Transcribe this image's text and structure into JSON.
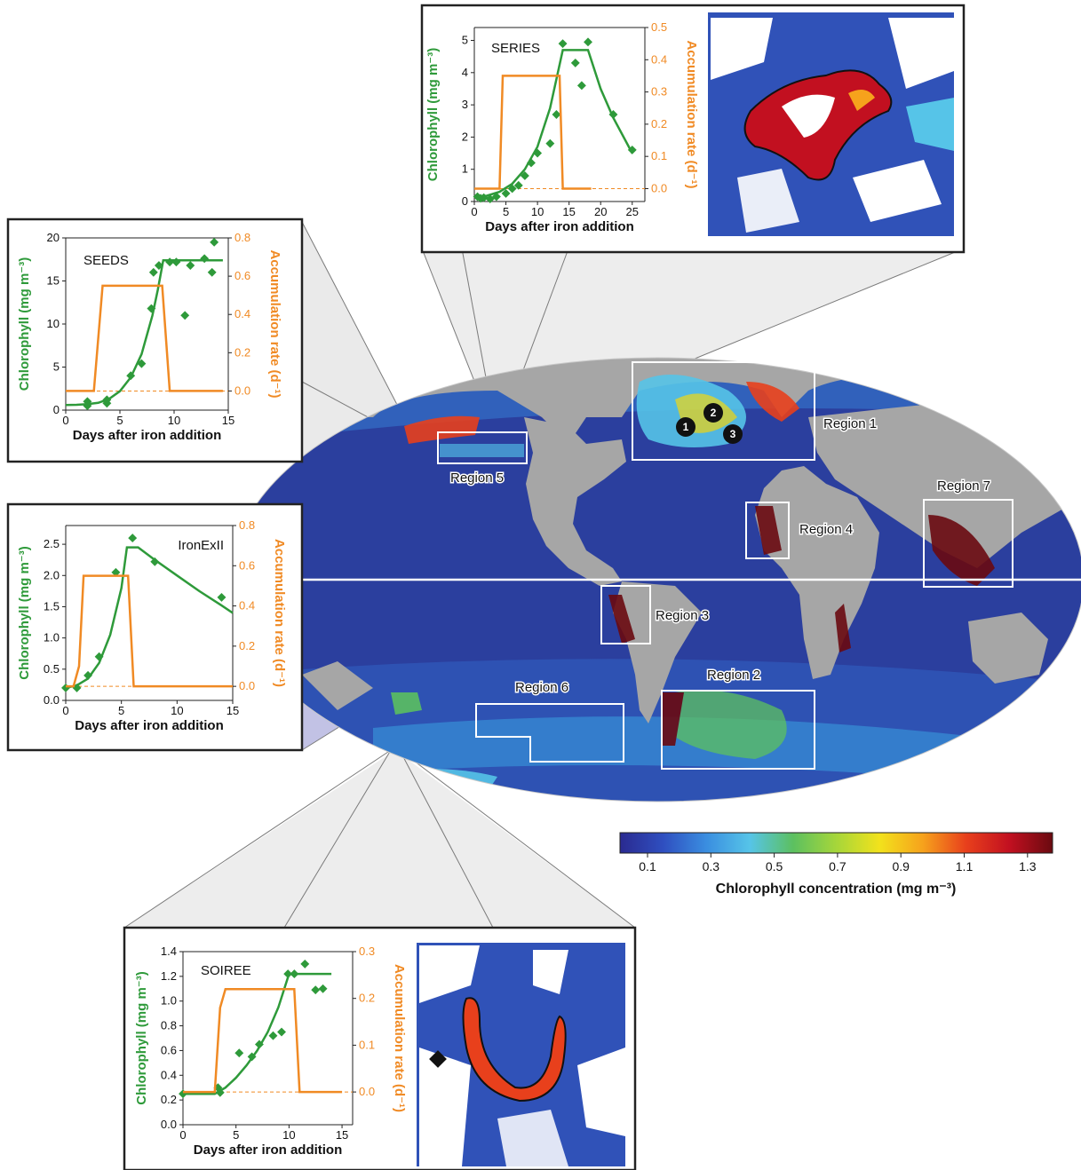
{
  "colors": {
    "chl_green": "#2e9a3a",
    "rate_orange": "#f08a24",
    "ocean_low": "#2b3f9e",
    "land": "#a6a6a6",
    "region_box": "#ffffff"
  },
  "map": {
    "regions": [
      {
        "id": "1",
        "label": "Region 1"
      },
      {
        "id": "2",
        "label": "Region 2"
      },
      {
        "id": "3",
        "label": "Region 3"
      },
      {
        "id": "4",
        "label": "Region 4"
      },
      {
        "id": "5",
        "label": "Region 5"
      },
      {
        "id": "6",
        "label": "Region 6"
      },
      {
        "id": "7",
        "label": "Region 7"
      }
    ],
    "markers": [
      "1",
      "2",
      "3"
    ]
  },
  "colorbar": {
    "ticks": [
      "0.1",
      "0.3",
      "0.5",
      "0.7",
      "0.9",
      "1.1",
      "1.3"
    ],
    "title": "Chlorophyll concentration (mg m⁻³)",
    "colors": [
      "#2a2a90",
      "#2f4fc0",
      "#3a8ee0",
      "#56c4e8",
      "#5cc060",
      "#a6d63a",
      "#f2e21c",
      "#f6a21c",
      "#e8401c",
      "#c21020",
      "#6a0a10"
    ]
  },
  "chart_data": [
    {
      "type": "line",
      "title": "SEEDS",
      "xlabel": "Days after iron addition",
      "ylabel_left": "Chlorophyll (mg m⁻³)",
      "ylabel_right": "Accumulation rate (d⁻¹)",
      "xlim": [
        0,
        15
      ],
      "ylim_left": [
        0,
        20
      ],
      "ylim_right": [
        -0.1,
        0.8
      ],
      "xticks": [
        "0",
        "5",
        "10",
        "15"
      ],
      "yticks_left": [
        "0",
        "5",
        "10",
        "15",
        "20"
      ],
      "yticks_right": [
        "0.0",
        "0.2",
        "0.4",
        "0.6",
        "0.8"
      ],
      "series": [
        {
          "axis": "left",
          "kind": "points",
          "x": [
            2,
            2,
            3.8,
            3.8,
            6,
            7,
            7.9,
            8.1,
            8.6,
            9.6,
            10.2,
            11,
            11.5,
            12.8,
            13.5,
            13.7
          ],
          "y": [
            0.5,
            1,
            0.8,
            1.2,
            4,
            5.4,
            11.8,
            16,
            16.8,
            17.2,
            17.2,
            11,
            16.8,
            17.6,
            16,
            19.5
          ]
        },
        {
          "axis": "left",
          "kind": "line",
          "x": [
            0,
            1,
            2,
            3,
            4,
            5,
            6,
            7,
            8,
            8.5,
            9,
            10,
            11,
            12,
            13,
            14.5
          ],
          "y": [
            0.6,
            0.62,
            0.7,
            0.85,
            1.3,
            2.2,
            3.8,
            6.5,
            11,
            14,
            17.4,
            17.4,
            17.4,
            17.4,
            17.4,
            17.4
          ]
        },
        {
          "axis": "right",
          "kind": "step",
          "x": [
            0,
            2.6,
            3.4,
            8.9,
            9.6,
            14.5
          ],
          "y": [
            0,
            0,
            0.55,
            0.55,
            0,
            0
          ]
        }
      ]
    },
    {
      "type": "line",
      "title": "IronExII",
      "xlabel": "Days after iron addition",
      "ylabel_left": "Chlorophyll (mg m⁻³)",
      "ylabel_right": "Accumulation rate (d⁻¹)",
      "xlim": [
        0,
        15
      ],
      "ylim_left": [
        0,
        2.8
      ],
      "ylim_right": [
        -0.07,
        0.8
      ],
      "xticks": [
        "0",
        "5",
        "10",
        "15"
      ],
      "yticks_left": [
        "0.0",
        "0.5",
        "1.0",
        "1.5",
        "2.0",
        "2.5"
      ],
      "yticks_right": [
        "0.0",
        "0.2",
        "0.4",
        "0.6",
        "0.8"
      ],
      "series": [
        {
          "axis": "left",
          "kind": "points",
          "x": [
            0,
            1,
            2,
            3,
            4.5,
            6,
            8,
            14
          ],
          "y": [
            0.2,
            0.2,
            0.4,
            0.7,
            2.05,
            2.6,
            2.22,
            1.65
          ]
        },
        {
          "axis": "left",
          "kind": "line",
          "x": [
            0,
            1,
            2,
            3,
            4,
            5,
            5.5,
            6.5,
            8,
            10,
            12,
            14,
            15
          ],
          "y": [
            0.2,
            0.24,
            0.35,
            0.6,
            1.05,
            1.8,
            2.45,
            2.45,
            2.25,
            2.0,
            1.75,
            1.52,
            1.4
          ]
        },
        {
          "axis": "right",
          "kind": "step",
          "x": [
            0,
            0.7,
            1.2,
            1.6,
            5.6,
            6.1,
            15
          ],
          "y": [
            0,
            0,
            0.1,
            0.55,
            0.55,
            0,
            0
          ]
        }
      ]
    },
    {
      "type": "line",
      "title": "SERIES",
      "xlabel": "Days after iron addition",
      "ylabel_left": "Chlorophyll (mg m⁻³)",
      "ylabel_right": "Accumulation rate (d⁻¹)",
      "xlim": [
        0,
        27
      ],
      "ylim_left": [
        0,
        5.4
      ],
      "ylim_right": [
        -0.04,
        0.5
      ],
      "xticks": [
        "0",
        "5",
        "10",
        "15",
        "20",
        "25"
      ],
      "yticks_left": [
        "0",
        "1",
        "2",
        "3",
        "4",
        "5"
      ],
      "yticks_right": [
        "0.0",
        "0.1",
        "0.2",
        "0.3",
        "0.4",
        "0.5"
      ],
      "series": [
        {
          "axis": "left",
          "kind": "points",
          "x": [
            0.5,
            1,
            1.5,
            2.5,
            3.5,
            5,
            6,
            7,
            8,
            9,
            10,
            12,
            13,
            14,
            16,
            17,
            18,
            22,
            25
          ],
          "y": [
            0.15,
            0.1,
            0.12,
            0.08,
            0.15,
            0.25,
            0.4,
            0.5,
            0.8,
            1.2,
            1.5,
            1.8,
            2.7,
            4.9,
            4.3,
            3.6,
            4.95,
            2.7,
            1.6
          ]
        },
        {
          "axis": "left",
          "kind": "line",
          "x": [
            0,
            2,
            4,
            6,
            8,
            10,
            12,
            14,
            16,
            18,
            20,
            22,
            25
          ],
          "y": [
            0.15,
            0.18,
            0.3,
            0.55,
            1.0,
            1.7,
            2.9,
            4.7,
            4.7,
            4.7,
            3.5,
            2.6,
            1.5
          ]
        },
        {
          "axis": "right",
          "kind": "step",
          "x": [
            0,
            4,
            4.5,
            13.5,
            14,
            18.5
          ],
          "y": [
            0,
            0,
            0.35,
            0.35,
            0,
            0
          ]
        }
      ]
    },
    {
      "type": "line",
      "title": "SOIREE",
      "xlabel": "Days after iron addition",
      "ylabel_left": "Chlorophyll (mg m⁻³)",
      "ylabel_right": "Accumulation rate (d⁻¹)",
      "xlim": [
        0,
        16
      ],
      "ylim_left": [
        0,
        1.4
      ],
      "ylim_right": [
        -0.07,
        0.3
      ],
      "xticks": [
        "0",
        "5",
        "10",
        "15"
      ],
      "yticks_left": [
        "0.0",
        "0.2",
        "0.4",
        "0.6",
        "0.8",
        "1.0",
        "1.2",
        "1.4"
      ],
      "yticks_right": [
        "0.0",
        "0.1",
        "0.2",
        "0.3"
      ],
      "series": [
        {
          "axis": "left",
          "kind": "points",
          "x": [
            0,
            3.3,
            3.5,
            5.3,
            6.5,
            7.2,
            8.5,
            9.3,
            9.9,
            10.5,
            11.5,
            12.5,
            13.2
          ],
          "y": [
            0.25,
            0.3,
            0.26,
            0.58,
            0.55,
            0.65,
            0.72,
            0.75,
            1.22,
            1.22,
            1.3,
            1.09,
            1.1
          ]
        },
        {
          "axis": "left",
          "kind": "line",
          "x": [
            0,
            3,
            4,
            5,
            6,
            7,
            8,
            9,
            10,
            10.5,
            12,
            14
          ],
          "y": [
            0.25,
            0.25,
            0.3,
            0.38,
            0.48,
            0.6,
            0.75,
            0.95,
            1.22,
            1.22,
            1.22,
            1.22
          ]
        },
        {
          "axis": "right",
          "kind": "step",
          "x": [
            0,
            3,
            3.5,
            4,
            10.5,
            11,
            15
          ],
          "y": [
            0,
            0,
            0.18,
            0.22,
            0.22,
            0,
            0
          ]
        }
      ]
    }
  ]
}
